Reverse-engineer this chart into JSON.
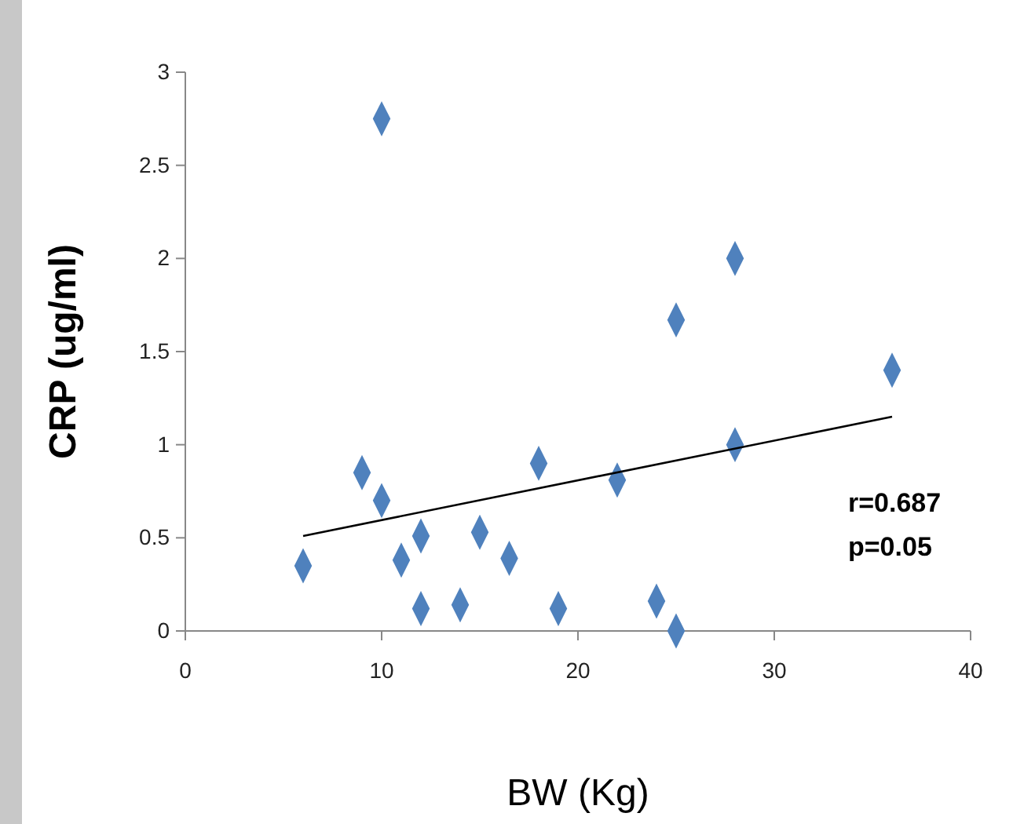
{
  "chart_data": {
    "type": "scatter",
    "xlabel": "BW (Kg)",
    "ylabel": "CRP (ug/ml)",
    "xlim": [
      0,
      40
    ],
    "xticks": [
      0,
      10,
      20,
      30,
      40
    ],
    "ylim": [
      0,
      3
    ],
    "yticks": [
      0,
      {
        "value": 0.5,
        "label": "0.5"
      },
      1,
      {
        "value": 1.5,
        "label": "1.5"
      },
      2,
      {
        "value": 2.5,
        "label": "2.5"
      },
      3
    ],
    "marker": "diamond",
    "grid": false,
    "annotations": [
      "r=0.687",
      "p=0.05"
    ],
    "series": [
      {
        "color": "#4f81bd",
        "x": [
          10,
          28,
          25,
          36,
          28,
          9,
          18,
          22,
          10,
          12,
          15,
          6,
          11,
          16.5,
          12,
          14,
          19,
          24,
          25
        ],
        "values": [
          2.75,
          2.0,
          1.67,
          1.4,
          1.0,
          0.85,
          0.9,
          0.81,
          0.7,
          0.51,
          0.53,
          0.35,
          0.38,
          0.39,
          0.12,
          0.14,
          0.12,
          0.16,
          0.0
        ]
      },
      {
        "type": "line",
        "color": "#000000",
        "marker": "none",
        "x": [
          6,
          36
        ],
        "values": [
          0.51,
          1.15
        ]
      }
    ]
  }
}
